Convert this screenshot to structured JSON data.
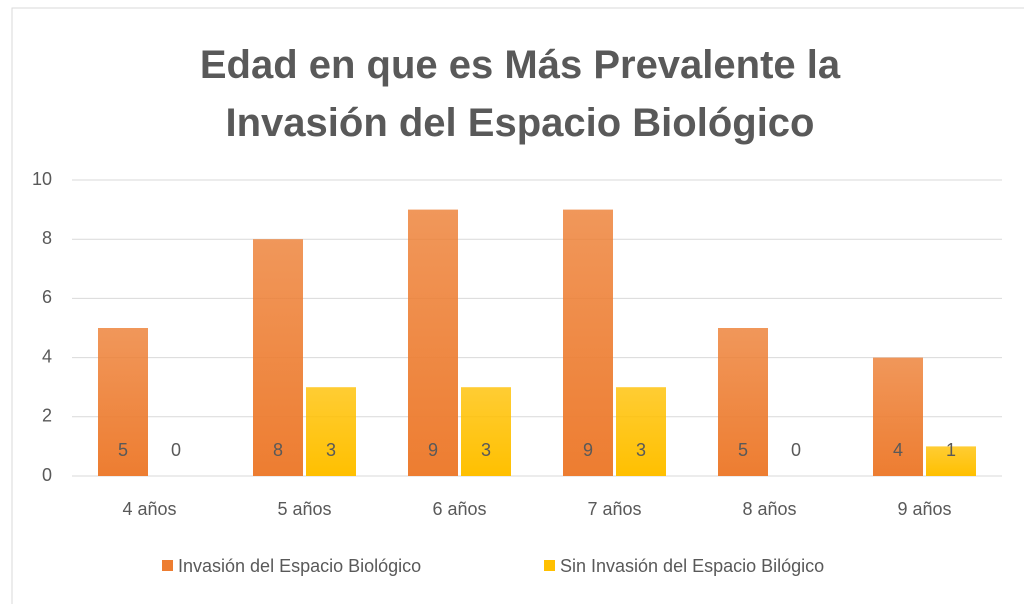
{
  "chart_data": {
    "type": "bar",
    "title": "Edad en que es Más Prevalente la Invasión del Espacio Biológico",
    "categories": [
      "4 años",
      "5 años",
      "6 años",
      "7 años",
      "8 años",
      "9 años"
    ],
    "series": [
      {
        "name": "Invasión del Espacio Biológico",
        "color": "#ed7d31",
        "values": [
          5,
          8,
          9,
          9,
          5,
          4
        ]
      },
      {
        "name": "Sin Invasión del Espacio Bilógico",
        "color": "#ffc000",
        "values": [
          0,
          3,
          3,
          3,
          0,
          1
        ]
      }
    ],
    "ylim": [
      0,
      10
    ],
    "yticks": [
      0,
      2,
      4,
      6,
      8,
      10
    ],
    "grid": true,
    "legend": "bottom"
  }
}
